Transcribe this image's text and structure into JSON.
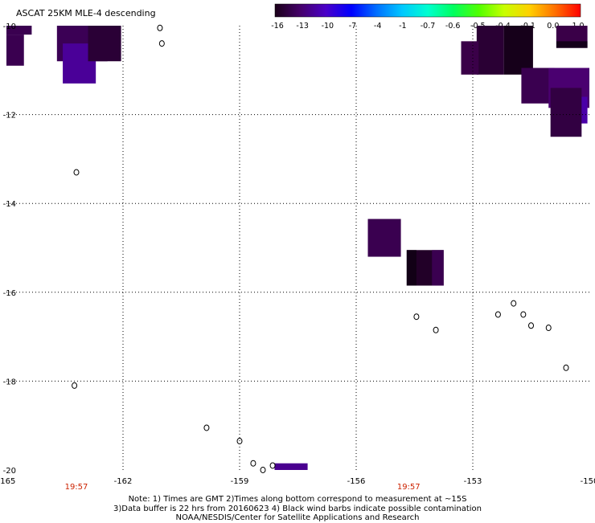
{
  "chart_data": {
    "type": "heatmap",
    "title": "ASCAT 25KM MLE-4 descending",
    "xlim": [
      -165,
      -150
    ],
    "ylim": [
      -20,
      -10
    ],
    "x_ticks": [
      -165,
      -162,
      -159,
      -156,
      -153,
      -150
    ],
    "x_tick_labels": [
      "-165",
      "-162",
      "-159",
      "-156",
      "-153",
      "-150"
    ],
    "y_ticks": [
      -10,
      -12,
      -14,
      -16,
      -18,
      -20
    ],
    "y_tick_labels": [
      "-10",
      "-12",
      "-14",
      "-16",
      "-18",
      "-20"
    ],
    "grid": true,
    "colorbar": {
      "tick_labels": [
        "-16",
        "-13",
        "-10",
        "-7",
        "-4",
        "-1",
        "-0.7",
        "-0.6",
        "-0.5",
        "-0.4",
        "-0.1",
        "0.0",
        "1.0"
      ],
      "colors": [
        "#1a0018",
        "#45006a",
        "#4a00c8",
        "#0000ff",
        "#0070ff",
        "#00c8ff",
        "#00ffd0",
        "#00ff60",
        "#50ff00",
        "#c8ff00",
        "#ffd000",
        "#ff7000",
        "#ff0000"
      ]
    },
    "cells": [
      {
        "x0": -165,
        "x1": -164.35,
        "y0": -10.2,
        "y1": -10.0,
        "color": "#3a0050"
      },
      {
        "x0": -165,
        "x1": -164.55,
        "y0": -10.9,
        "y1": -10.2,
        "color": "#3a0050"
      },
      {
        "x0": -163.7,
        "x1": -162.4,
        "y0": -10.8,
        "y1": -10.0,
        "color": "#3b0055"
      },
      {
        "x0": -163.55,
        "x1": -162.7,
        "y0": -11.3,
        "y1": -10.4,
        "color": "#4a0098"
      },
      {
        "x0": -162.9,
        "x1": -162.05,
        "y0": -10.8,
        "y1": -10.0,
        "color": "#2a0036"
      },
      {
        "x0": -152.9,
        "x1": -152.2,
        "y0": -11.1,
        "y1": -10.0,
        "color": "#2a0034"
      },
      {
        "x0": -152.2,
        "x1": -151.45,
        "y0": -11.1,
        "y1": -10.0,
        "color": "#16001a"
      },
      {
        "x0": -153.3,
        "x1": -152.85,
        "y0": -11.1,
        "y1": -10.35,
        "color": "#3a0048"
      },
      {
        "x0": -150.85,
        "x1": -150.35,
        "y0": -10.35,
        "y1": -10.0,
        "color": "#2a0030"
      },
      {
        "x0": -150.85,
        "x1": -150.05,
        "y0": -10.5,
        "y1": -10.0,
        "color": "#3a0048"
      },
      {
        "x0": -150.85,
        "x1": -150.05,
        "y0": -10.5,
        "y1": -10.35,
        "color": "#14001a"
      },
      {
        "x0": -151.75,
        "x1": -150.9,
        "y0": -11.75,
        "y1": -10.95,
        "color": "#3a0050"
      },
      {
        "x0": -151.05,
        "x1": -150.0,
        "y0": -11.85,
        "y1": -10.95,
        "color": "#4a0070"
      },
      {
        "x0": -150.25,
        "x1": -150.05,
        "y0": -12.2,
        "y1": -11.6,
        "color": "#4a00a8"
      },
      {
        "x0": -151.0,
        "x1": -150.2,
        "y0": -12.5,
        "y1": -11.4,
        "color": "#320042"
      },
      {
        "x0": -155.7,
        "x1": -154.85,
        "y0": -15.2,
        "y1": -14.35,
        "color": "#3a0050"
      },
      {
        "x0": -154.7,
        "x1": -153.75,
        "y0": -15.85,
        "y1": -15.05,
        "color": "#220028"
      },
      {
        "x0": -154.7,
        "x1": -154.45,
        "y0": -15.85,
        "y1": -15.05,
        "color": "#120016"
      },
      {
        "x0": -154.05,
        "x1": -153.75,
        "y0": -15.85,
        "y1": -15.05,
        "color": "#3a0050"
      },
      {
        "x0": -158.1,
        "x1": -157.25,
        "y0": -20.0,
        "y1": -19.85,
        "color": "#4a0090"
      }
    ],
    "islands": [
      {
        "x": -163.2,
        "y": -13.3
      },
      {
        "x": -161.0,
        "y": -10.4
      },
      {
        "x": -161.05,
        "y": -10.05
      },
      {
        "x": -154.45,
        "y": -16.55
      },
      {
        "x": -153.95,
        "y": -16.85
      },
      {
        "x": -152.35,
        "y": -16.5
      },
      {
        "x": -151.95,
        "y": -16.25
      },
      {
        "x": -151.7,
        "y": -16.5
      },
      {
        "x": -151.5,
        "y": -16.75
      },
      {
        "x": -151.05,
        "y": -16.8
      },
      {
        "x": -150.6,
        "y": -17.7
      },
      {
        "x": -163.25,
        "y": -18.1
      },
      {
        "x": -159.85,
        "y": -19.05
      },
      {
        "x": -159.0,
        "y": -19.35
      },
      {
        "x": -158.65,
        "y": -19.85
      },
      {
        "x": -158.4,
        "y": -20.0
      },
      {
        "x": -158.15,
        "y": -19.9
      }
    ],
    "time_labels": [
      {
        "x": -163.2,
        "text": "19:57"
      },
      {
        "x": -154.65,
        "text": "19:57"
      }
    ]
  },
  "notes": [
    "Note: 1) Times are GMT 2)Times along bottom correspond to measurement at ~15S",
    "3)Data buffer is 22 hrs from 20160623 4) Black wind barbs indicate possible contamination",
    "NOAA/NESDIS/Center for Satellite Applications and Research"
  ]
}
